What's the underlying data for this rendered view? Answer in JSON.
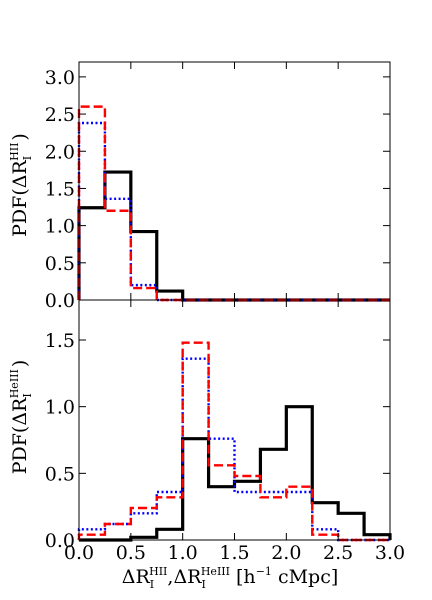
{
  "chart_data": [
    {
      "type": "step",
      "panel": "top",
      "ylabel": {
        "prefix": "PDF(ΔR",
        "sub": "I",
        "sup": "HII",
        "suffix": ")"
      },
      "xlim": [
        0.0,
        3.0
      ],
      "ylim": [
        0.0,
        3.2
      ],
      "yticks": [
        "0.0",
        "0.5",
        "1.0",
        "1.5",
        "2.0",
        "2.5",
        "3.0"
      ],
      "bin_edges": [
        0.0,
        0.25,
        0.5,
        0.75,
        1.0,
        1.25,
        1.5,
        1.75,
        2.0,
        2.25,
        2.5,
        2.75,
        3.0
      ],
      "series": [
        {
          "style": "solid-black",
          "color": "#000000",
          "values": [
            1.24,
            1.72,
            0.92,
            0.12,
            0,
            0,
            0,
            0,
            0,
            0,
            0,
            0
          ]
        },
        {
          "style": "dotted-blue",
          "color": "#0000ff",
          "values": [
            2.38,
            1.36,
            0.2,
            0,
            0,
            0,
            0,
            0,
            0,
            0,
            0,
            0
          ]
        },
        {
          "style": "dashed-red",
          "color": "#ff0000",
          "values": [
            2.6,
            1.2,
            0.16,
            0,
            0,
            0,
            0,
            0,
            0,
            0,
            0,
            0
          ]
        }
      ]
    },
    {
      "type": "step",
      "panel": "bottom",
      "ylabel": {
        "prefix": "PDF(ΔR",
        "sub": "I",
        "sup": "HeIII",
        "suffix": ")"
      },
      "xlabel": {
        "a": "ΔR",
        "a_sub": "I",
        "a_sup": "HII",
        "sep": ",",
        "b": "ΔR",
        "b_sub": "I",
        "b_sup": "HeIII",
        "unit_open": " [h",
        "unit_sup": "−1",
        "unit_close": " cMpc]"
      },
      "xlim": [
        0.0,
        3.0
      ],
      "ylim": [
        0.0,
        1.8
      ],
      "xticks": [
        "0.0",
        "0.5",
        "1.0",
        "1.5",
        "2.0",
        "2.5",
        "3.0"
      ],
      "yticks": [
        "0.0",
        "0.5",
        "1.0",
        "1.5"
      ],
      "bin_edges": [
        0.0,
        0.25,
        0.5,
        0.75,
        1.0,
        1.25,
        1.5,
        1.75,
        2.0,
        2.25,
        2.5,
        2.75,
        3.0
      ],
      "series": [
        {
          "style": "solid-black",
          "color": "#000000",
          "values": [
            0.0,
            0.0,
            0.02,
            0.08,
            0.76,
            0.4,
            0.44,
            0.68,
            1.0,
            0.28,
            0.2,
            0.04
          ]
        },
        {
          "style": "dotted-blue",
          "color": "#0000ff",
          "values": [
            0.08,
            0.12,
            0.2,
            0.36,
            1.36,
            0.76,
            0.36,
            0.36,
            0.36,
            0.08,
            0.0,
            0.0
          ]
        },
        {
          "style": "dashed-red",
          "color": "#ff0000",
          "values": [
            0.04,
            0.12,
            0.24,
            0.32,
            1.48,
            0.56,
            0.48,
            0.32,
            0.4,
            0.04,
            0.0,
            0.0
          ]
        }
      ]
    }
  ]
}
